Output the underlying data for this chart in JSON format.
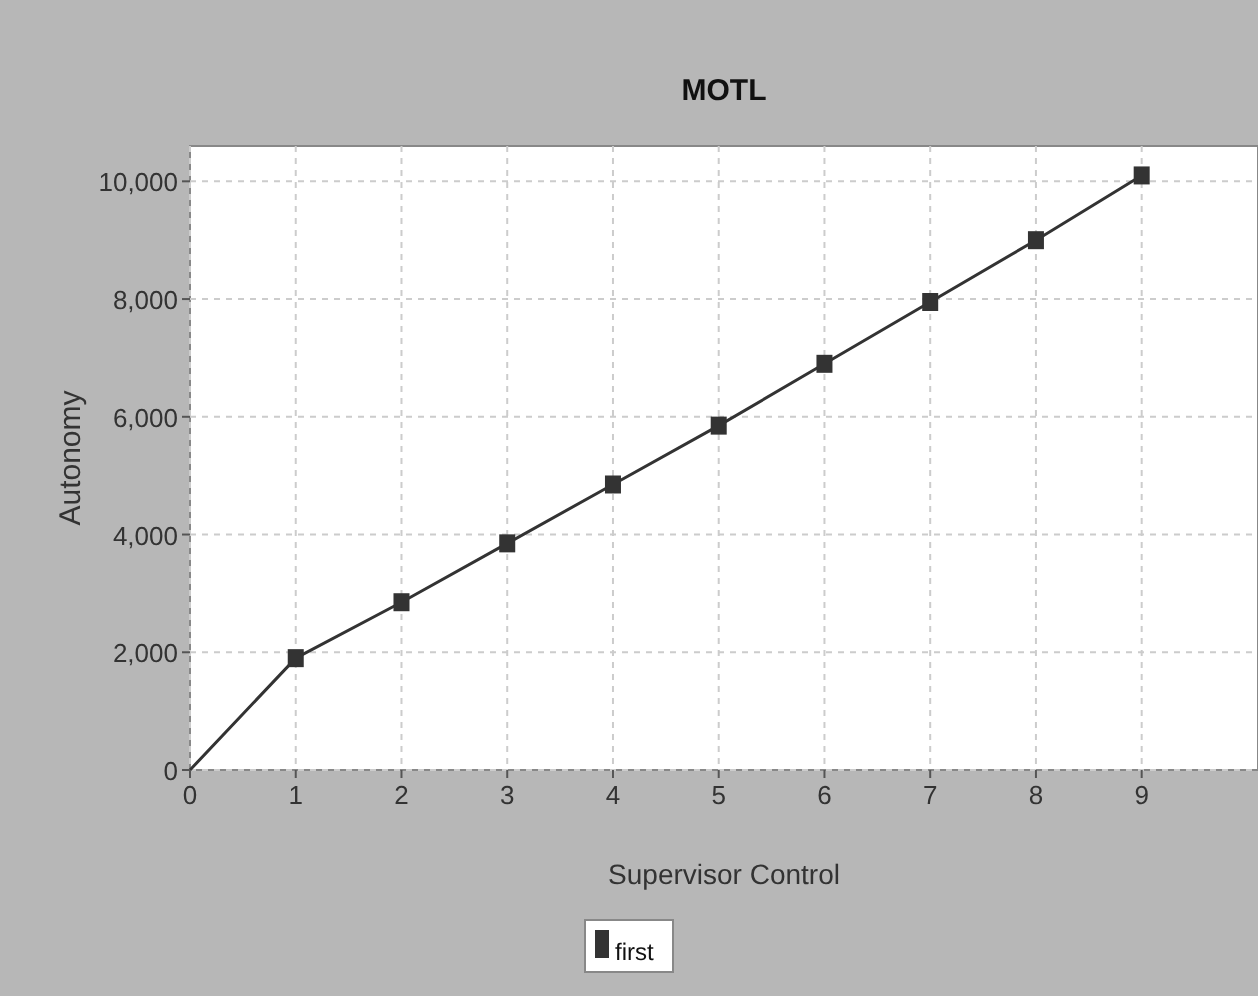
{
  "chart_data": {
    "type": "line",
    "title": "MOTL",
    "xlabel": "Supervisor Control",
    "ylabel": "Autonomy",
    "x": [
      0,
      1,
      2,
      3,
      4,
      5,
      6,
      7,
      8,
      9
    ],
    "series": [
      {
        "name": "first",
        "color": "#333333",
        "values": [
          0,
          1900,
          2850,
          3850,
          4850,
          5850,
          6900,
          7950,
          9000,
          10100
        ]
      }
    ],
    "xlim": [
      0,
      10.1
    ],
    "xticks": [
      0,
      1,
      2,
      3,
      4,
      5,
      6,
      7,
      8,
      9
    ],
    "ylim": [
      0,
      10600
    ],
    "yticks": [
      {
        "value": 0,
        "label": "0"
      },
      {
        "value": 2000,
        "label": "2,000"
      },
      {
        "value": 4000,
        "label": "4,000"
      },
      {
        "value": 6000,
        "label": "6,000"
      },
      {
        "value": 8000,
        "label": "8,000"
      },
      {
        "value": 10000,
        "label": "10,000"
      }
    ],
    "grid": true,
    "legend": "bottom",
    "marker": "square"
  }
}
